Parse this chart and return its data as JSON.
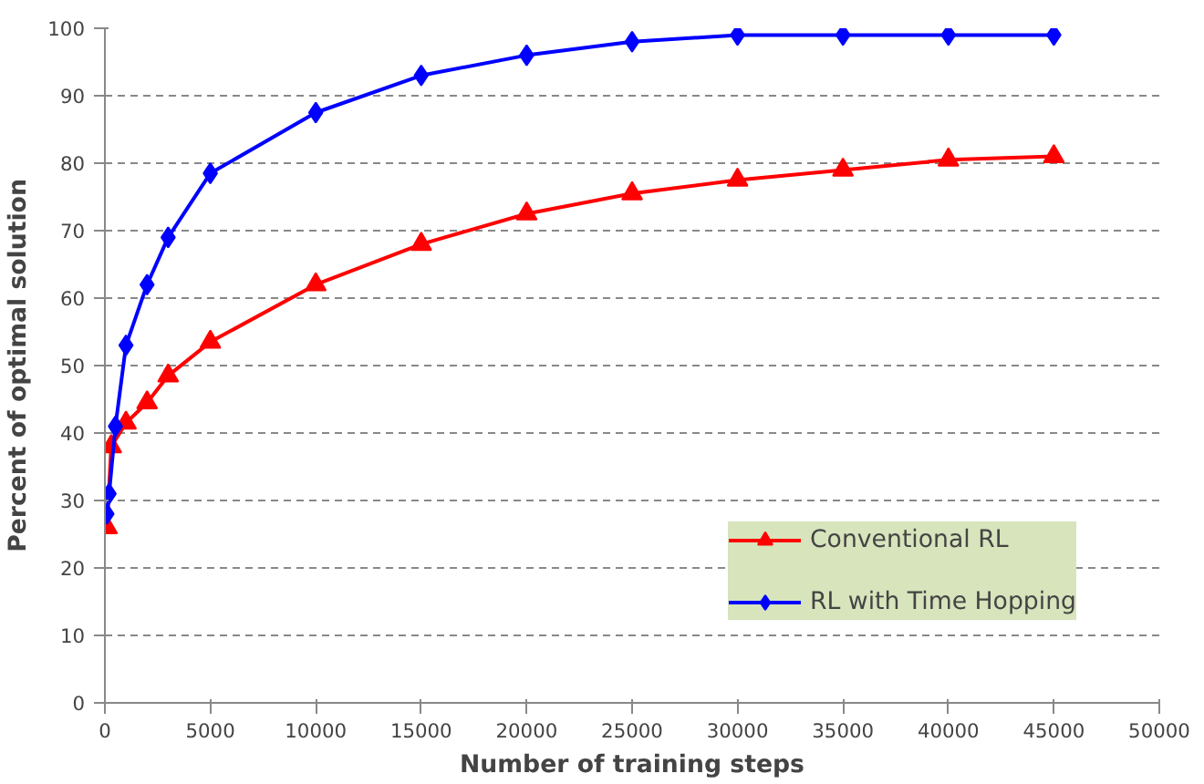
{
  "chart_data": {
    "type": "line",
    "xlabel": "Number of training steps",
    "ylabel": "Percent of optimal solution",
    "xlim": [
      0,
      50000
    ],
    "xticks": [
      0,
      5000,
      10000,
      15000,
      20000,
      25000,
      30000,
      35000,
      40000,
      45000,
      50000
    ],
    "ylim": [
      0,
      100
    ],
    "yticks": [
      0,
      10,
      20,
      30,
      40,
      50,
      60,
      70,
      80,
      90,
      100
    ],
    "grid": "y",
    "legend": "bottom right",
    "series": [
      {
        "name": "Conventional RL",
        "color": "#ff0000",
        "marker": "triangle",
        "x": [
          100,
          300,
          1000,
          2000,
          3000,
          5000,
          10000,
          15000,
          20000,
          25000,
          30000,
          35000,
          40000,
          45000
        ],
        "values": [
          26,
          38,
          41.5,
          44.5,
          48.5,
          53.5,
          62,
          68,
          72.5,
          75.5,
          77.5,
          79,
          80.5,
          81
        ]
      },
      {
        "name": "RL with Time Hopping",
        "color": "#0000ff",
        "marker": "diamond",
        "x": [
          100,
          200,
          500,
          1000,
          2000,
          3000,
          5000,
          10000,
          15000,
          20000,
          25000,
          30000,
          35000,
          40000,
          45000
        ],
        "values": [
          28,
          31,
          41,
          53,
          62,
          69,
          78.5,
          87.5,
          93,
          96,
          98,
          99,
          99,
          99,
          99
        ]
      }
    ]
  }
}
